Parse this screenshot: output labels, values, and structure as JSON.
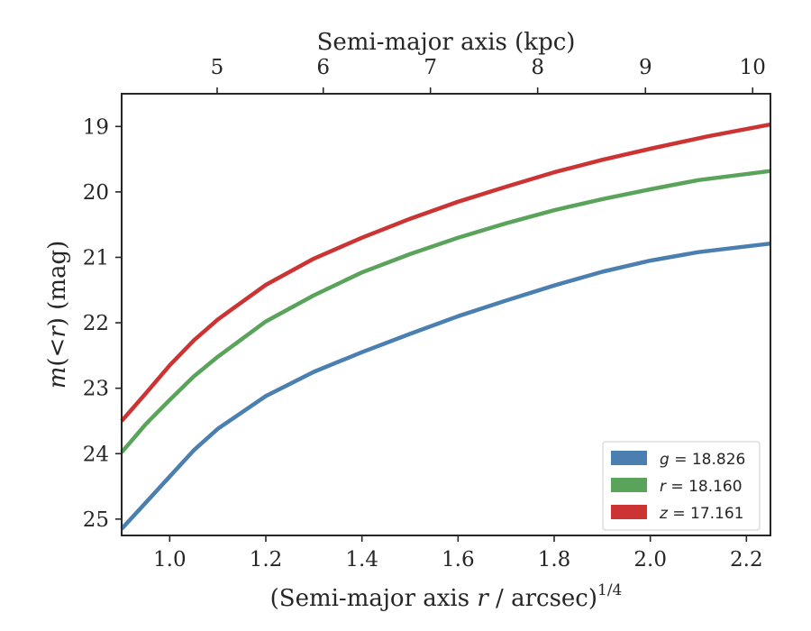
{
  "chart_data": {
    "type": "line",
    "xlabel_prefix": "(Semi-major axis ",
    "xlabel_var": "r",
    "xlabel_suffix": " / arcsec)",
    "xlabel_power": "1/4",
    "ylabel_var": "m",
    "ylabel_mid": "(<",
    "ylabel_var2": "r",
    "ylabel_suffix": ") (mag)",
    "top_xlabel": "Semi-major axis (kpc)",
    "xlim": [
      0.9,
      2.25
    ],
    "ylim": [
      25.25,
      18.5
    ],
    "y_inverted": true,
    "x_ticks": [
      {
        "value": 1.0,
        "label": "1.0"
      },
      {
        "value": 1.2,
        "label": "1.2"
      },
      {
        "value": 1.4,
        "label": "1.4"
      },
      {
        "value": 1.6,
        "label": "1.6"
      },
      {
        "value": 1.8,
        "label": "1.8"
      },
      {
        "value": 2.0,
        "label": "2.0"
      },
      {
        "value": 2.2,
        "label": "2.2"
      }
    ],
    "y_ticks": [
      {
        "value": 19,
        "label": "19"
      },
      {
        "value": 20,
        "label": "20"
      },
      {
        "value": 21,
        "label": "21"
      },
      {
        "value": 22,
        "label": "22"
      },
      {
        "value": 23,
        "label": "23"
      },
      {
        "value": 24,
        "label": "24"
      },
      {
        "value": 25,
        "label": "25"
      }
    ],
    "top_ticks": [
      {
        "x": 1.0987,
        "label": "5"
      },
      {
        "x": 1.3195,
        "label": "6"
      },
      {
        "x": 1.5425,
        "label": "7"
      },
      {
        "x": 1.7656,
        "label": "8"
      },
      {
        "x": 1.9899,
        "label": "9"
      },
      {
        "x": 2.213,
        "label": "10"
      }
    ],
    "legend_position": "lower-right",
    "series": [
      {
        "name_var": "g",
        "name_value": "18.826",
        "color": "#4a7fb0",
        "x": [
          0.9,
          0.95,
          1.0,
          1.05,
          1.1,
          1.2,
          1.3,
          1.4,
          1.5,
          1.6,
          1.7,
          1.8,
          1.9,
          2.0,
          2.1,
          2.25
        ],
        "y": [
          25.15,
          24.75,
          24.35,
          23.95,
          23.62,
          23.12,
          22.75,
          22.45,
          22.17,
          21.9,
          21.66,
          21.43,
          21.22,
          21.05,
          20.92,
          20.79
        ]
      },
      {
        "name_var": "r",
        "name_value": "18.160",
        "color": "#5aa35a",
        "x": [
          0.9,
          0.95,
          1.0,
          1.05,
          1.1,
          1.2,
          1.3,
          1.4,
          1.5,
          1.6,
          1.7,
          1.8,
          1.9,
          2.0,
          2.1,
          2.25
        ],
        "y": [
          23.98,
          23.55,
          23.18,
          22.82,
          22.52,
          21.98,
          21.58,
          21.23,
          20.95,
          20.7,
          20.48,
          20.28,
          20.11,
          19.96,
          19.82,
          19.68
        ]
      },
      {
        "name_var": "z",
        "name_value": "17.161",
        "color": "#cc3333",
        "x": [
          0.9,
          0.95,
          1.0,
          1.05,
          1.1,
          1.2,
          1.3,
          1.4,
          1.5,
          1.6,
          1.7,
          1.8,
          1.9,
          2.0,
          2.12,
          2.25
        ],
        "y": [
          23.5,
          23.08,
          22.65,
          22.27,
          21.95,
          21.42,
          21.02,
          20.7,
          20.41,
          20.15,
          19.92,
          19.7,
          19.51,
          19.34,
          19.15,
          18.97
        ]
      }
    ]
  }
}
